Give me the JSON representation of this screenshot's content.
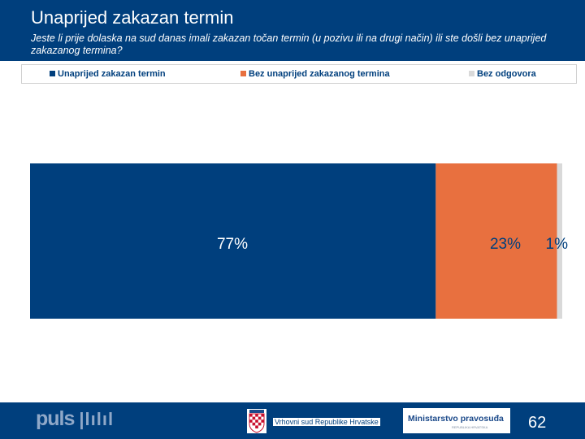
{
  "header": {
    "title": "Unaprijed zakazan termin",
    "subtitle": "Jeste li prije dolaska na sud danas imali zakazan točan termin (u pozivu ili na drugi način) ili ste došli bez unaprijed zakazanog termina?"
  },
  "colors": {
    "header_bg": "#003f7d",
    "series_1": "#003f7d",
    "series_2": "#e8703f",
    "series_3": "#d9d9d9"
  },
  "chart_data": {
    "type": "bar",
    "orientation": "horizontal",
    "stacked": true,
    "categories": [
      ""
    ],
    "series": [
      {
        "name": "Unaprijed zakazan termin",
        "values": [
          77
        ],
        "label": "77%"
      },
      {
        "name": "Bez unaprijed zakazanog termina",
        "values": [
          23
        ],
        "label": "23%"
      },
      {
        "name": "Bez odgovora",
        "values": [
          1
        ],
        "label": "1%"
      }
    ],
    "unit": "%",
    "legend": "top",
    "grid": false
  },
  "footer": {
    "brand": "puls",
    "court_text": "Vrhovni sud Republike Hrvatske",
    "ministry_text": "Ministarstvo pravosuđa",
    "ministry_subtext": "REPUBLIKA HRVATSKA",
    "page_number": "62"
  }
}
